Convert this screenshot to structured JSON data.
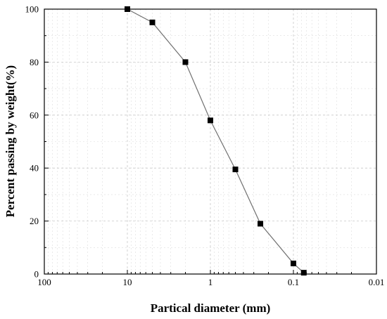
{
  "chart_data": {
    "type": "scatter",
    "title": "",
    "xlabel": "Partical diameter (mm)",
    "ylabel": "Percent passing by weight(%)",
    "x_scale": "log",
    "x_reversed": true,
    "xlim": [
      100,
      0.01
    ],
    "ylim": [
      0,
      100
    ],
    "x_ticks": [
      100,
      10,
      1,
      0.1,
      0.01
    ],
    "x_tick_labels": [
      "100",
      "10",
      "1",
      "0.1",
      "0.01"
    ],
    "y_ticks": [
      0,
      20,
      40,
      60,
      80,
      100
    ],
    "y_tick_labels": [
      "0",
      "20",
      "40",
      "60",
      "80",
      "100"
    ],
    "grid": true,
    "legend": "none",
    "series": [
      {
        "marker": "square",
        "marker_color": "#000000",
        "line_color": "#707070",
        "x": [
          10,
          5,
          2,
          1,
          0.5,
          0.25,
          0.1,
          0.075
        ],
        "y": [
          100,
          95,
          80,
          58,
          39.5,
          19,
          4,
          0.5
        ]
      }
    ]
  }
}
